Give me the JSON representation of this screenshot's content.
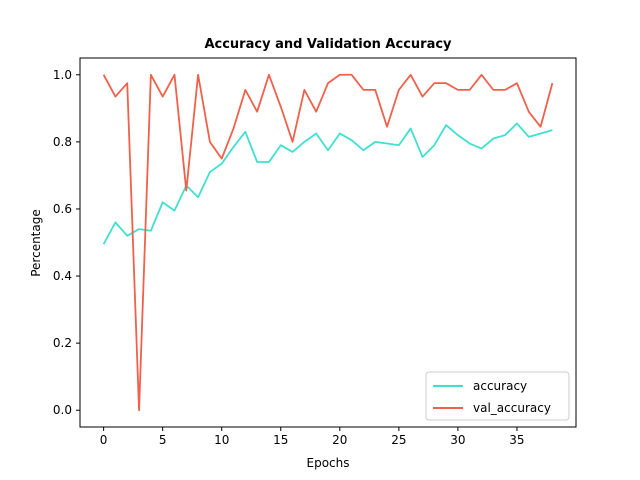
{
  "chart_data": {
    "type": "line",
    "title": "Accuracy and Validation Accuracy",
    "xlabel": "Epochs",
    "ylabel": "Percentage",
    "xlim": [
      -2,
      40
    ],
    "ylim": [
      -0.05,
      1.05
    ],
    "x_ticks": [
      0,
      5,
      10,
      15,
      20,
      25,
      30,
      35
    ],
    "y_ticks": [
      0.0,
      0.2,
      0.4,
      0.6,
      0.8,
      1.0
    ],
    "x_tick_labels": [
      "0",
      "5",
      "10",
      "15",
      "20",
      "25",
      "30",
      "35"
    ],
    "y_tick_labels": [
      "0.0",
      "0.2",
      "0.4",
      "0.6",
      "0.8",
      "1.0"
    ],
    "grid": false,
    "legend_position": "lower-right",
    "x": [
      0,
      1,
      2,
      3,
      4,
      5,
      6,
      7,
      8,
      9,
      10,
      11,
      12,
      13,
      14,
      15,
      16,
      17,
      18,
      19,
      20,
      21,
      22,
      23,
      24,
      25,
      26,
      27,
      28,
      29,
      30,
      31,
      32,
      33,
      34,
      35,
      36,
      37,
      38
    ],
    "series": [
      {
        "name": "accuracy",
        "color": "#40e0d0",
        "values": [
          0.495,
          0.56,
          0.52,
          0.54,
          0.535,
          0.62,
          0.595,
          0.67,
          0.635,
          0.71,
          0.735,
          0.785,
          0.83,
          0.74,
          0.74,
          0.79,
          0.77,
          0.8,
          0.825,
          0.775,
          0.825,
          0.805,
          0.775,
          0.8,
          0.795,
          0.79,
          0.84,
          0.755,
          0.79,
          0.85,
          0.82,
          0.795,
          0.78,
          0.81,
          0.82,
          0.855,
          0.815,
          0.825,
          0.835
        ]
      },
      {
        "name": "val_accuracy",
        "color": "#f0604a",
        "values": [
          1.0,
          0.935,
          0.975,
          0.0,
          1.0,
          0.935,
          1.0,
          0.655,
          1.0,
          0.8,
          0.75,
          0.84,
          0.955,
          0.89,
          1.0,
          0.905,
          0.8,
          0.955,
          0.89,
          0.975,
          1.0,
          1.0,
          0.955,
          0.955,
          0.845,
          0.955,
          1.0,
          0.935,
          0.975,
          0.975,
          0.955,
          0.955,
          1.0,
          0.955,
          0.955,
          0.975,
          0.89,
          0.845,
          0.975
        ]
      }
    ]
  }
}
